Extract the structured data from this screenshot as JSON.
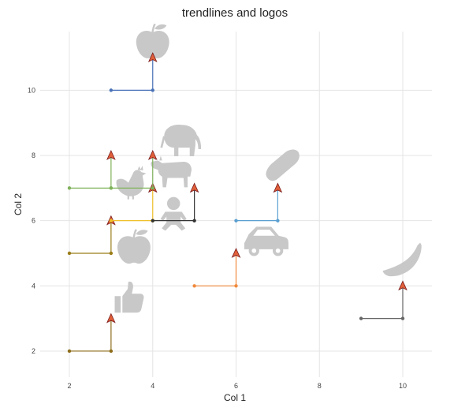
{
  "chart_data": {
    "type": "scatter",
    "title": "trendlines and logos",
    "xlabel": "Col 1",
    "ylabel": "Col 2",
    "xlim": [
      1.3,
      10.7
    ],
    "ylim": [
      1.2,
      11.8
    ],
    "x_ticks": [
      2,
      4,
      6,
      8,
      10
    ],
    "y_ticks": [
      2,
      4,
      6,
      8,
      10
    ],
    "x_tick_labels": [
      "2",
      "4",
      "6",
      "8",
      "10"
    ],
    "y_tick_labels": [
      "2",
      "4",
      "6",
      "8",
      "10"
    ],
    "grid": true,
    "icon_color": "#c8c8c8",
    "series": [
      {
        "color": "#4a72b8",
        "start": [
          3,
          10
        ],
        "corner": [
          4,
          10
        ],
        "arrow": [
          4,
          11
        ],
        "icon": "apple-icon",
        "icon_at": [
          4,
          11.5
        ]
      },
      {
        "color": "#8d6d1a",
        "start": [
          2,
          2
        ],
        "corner": [
          3,
          2
        ],
        "arrow": [
          3,
          3
        ],
        "icon": "thumbs-up-icon",
        "icon_at": [
          3.4,
          3.65
        ]
      },
      {
        "color": "#7fb25a",
        "start": [
          2,
          7
        ],
        "corner": [
          3,
          7
        ],
        "arrow": [
          3,
          8
        ],
        "icon": "chicken-icon",
        "icon_at": [
          3.5,
          7.2
        ]
      },
      {
        "color": "#9a7d18",
        "start": [
          2,
          5
        ],
        "corner": [
          3,
          5
        ],
        "arrow": [
          3,
          6
        ],
        "icon": "apple-icon",
        "icon_at": [
          3.55,
          5.2
        ]
      },
      {
        "color": "#f0c02a",
        "start": [
          3,
          6
        ],
        "corner": [
          4,
          6
        ],
        "arrow": [
          4,
          7
        ],
        "icon": "cow-icon",
        "icon_at": [
          4.45,
          7.6
        ]
      },
      {
        "color": "#333333",
        "start": [
          4,
          6
        ],
        "corner": [
          5,
          6
        ],
        "arrow": [
          5,
          7
        ],
        "icon": "baby-icon",
        "icon_at": [
          4.5,
          6.2
        ]
      },
      {
        "color": "#7fb25a",
        "start": [
          3,
          7
        ],
        "corner": [
          4,
          7
        ],
        "arrow": [
          4,
          8
        ],
        "icon": "elephant-icon",
        "icon_at": [
          4.65,
          8.5
        ]
      },
      {
        "color": "#5a9fd0",
        "start": [
          6,
          6
        ],
        "corner": [
          7,
          6
        ],
        "arrow": [
          7,
          7
        ],
        "icon": "bread-icon",
        "icon_at": [
          7.1,
          7.7
        ]
      },
      {
        "color": "#f08a3c",
        "start": [
          5,
          4
        ],
        "corner": [
          6,
          4
        ],
        "arrow": [
          6,
          5
        ],
        "icon": "car-icon",
        "icon_at": [
          6.7,
          5.4
        ]
      },
      {
        "color": "#666666",
        "start": [
          9,
          3
        ],
        "corner": [
          10,
          3
        ],
        "arrow": [
          10,
          4
        ],
        "icon": "banana-icon",
        "icon_at": [
          10,
          4.75
        ]
      }
    ]
  }
}
